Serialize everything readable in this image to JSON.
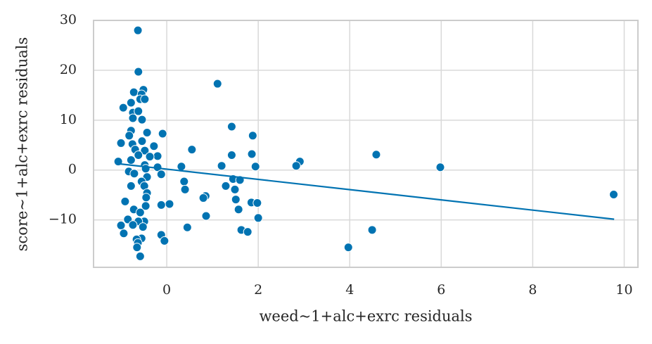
{
  "chart_data": {
    "type": "scatter",
    "x_label": "weed~1+alc+exrc residuals",
    "y_label": "score~1+alc+exrc residuals",
    "color": "#0173b2",
    "grid": true,
    "xlim": [
      -1.6,
      10.3
    ],
    "ylim": [
      -19.5,
      30
    ],
    "xticks": [
      0,
      2,
      4,
      6,
      8,
      10
    ],
    "yticks": [
      {
        "value": -10,
        "label": "−10"
      },
      0,
      10,
      20,
      30
    ],
    "x": [
      -0.63,
      -0.62,
      1.11,
      -0.72,
      -0.51,
      -0.55,
      -0.95,
      -0.78,
      -0.58,
      -0.48,
      -0.74,
      -0.62,
      -0.54,
      -0.74,
      1.42,
      1.88,
      -0.09,
      -0.43,
      -0.78,
      -0.82,
      -1.0,
      -0.54,
      -0.75,
      -0.69,
      -0.28,
      0.55,
      -0.48,
      4.58,
      1.42,
      1.86,
      -0.2,
      -0.37,
      -0.62,
      -0.78,
      -1.06,
      2.91,
      -0.48,
      1.2,
      2.83,
      5.98,
      0.32,
      1.94,
      -0.2,
      -0.46,
      -0.83,
      -0.71,
      -0.12,
      -0.43,
      1.45,
      1.6,
      -0.55,
      0.38,
      -0.78,
      -0.49,
      1.29,
      0.4,
      1.49,
      -0.43,
      9.77,
      -0.45,
      0.85,
      0.8,
      1.51,
      -0.91,
      1.85,
      1.98,
      0.06,
      -0.12,
      -0.46,
      1.57,
      -0.72,
      -0.58,
      0.86,
      2.0,
      -0.85,
      -0.49,
      -0.62,
      -0.74,
      -1.0,
      -0.52,
      0.45,
      1.63,
      4.49,
      1.77,
      -0.94,
      -0.12,
      -0.55,
      -0.66,
      -0.05,
      -0.63,
      3.97,
      -0.65,
      -0.58
    ],
    "values": [
      28.0,
      19.7,
      17.3,
      15.6,
      16.1,
      15.2,
      12.5,
      13.5,
      14.2,
      14.2,
      11.5,
      11.8,
      10.1,
      10.4,
      8.7,
      6.9,
      7.3,
      7.5,
      7.9,
      6.9,
      5.4,
      5.8,
      5.2,
      4.1,
      4.8,
      4.1,
      3.9,
      3.1,
      3.0,
      3.2,
      2.8,
      2.7,
      3.0,
      2.0,
      1.7,
      1.7,
      1.0,
      0.85,
      0.85,
      0.56,
      0.7,
      0.7,
      0.56,
      0.28,
      -0.28,
      -0.7,
      -0.85,
      -1.4,
      -1.8,
      -2.0,
      -2.3,
      -2.3,
      -3.2,
      -3.2,
      -3.2,
      -3.9,
      -3.9,
      -4.6,
      -4.9,
      -5.5,
      -5.2,
      -5.6,
      -5.9,
      -6.3,
      -6.5,
      -6.6,
      -6.8,
      -7.0,
      -7.2,
      -7.9,
      -7.9,
      -8.5,
      -9.2,
      -9.6,
      -9.9,
      -10.3,
      -10.3,
      -11.0,
      -11.1,
      -11.4,
      -11.5,
      -12.0,
      -12.0,
      -12.4,
      -12.7,
      -13.0,
      -13.7,
      -13.9,
      -14.2,
      -14.6,
      -15.5,
      -15.5,
      -17.3
    ],
    "regression": {
      "x": [
        -1.06,
        9.78
      ],
      "values": [
        1.27,
        -9.86
      ]
    }
  }
}
